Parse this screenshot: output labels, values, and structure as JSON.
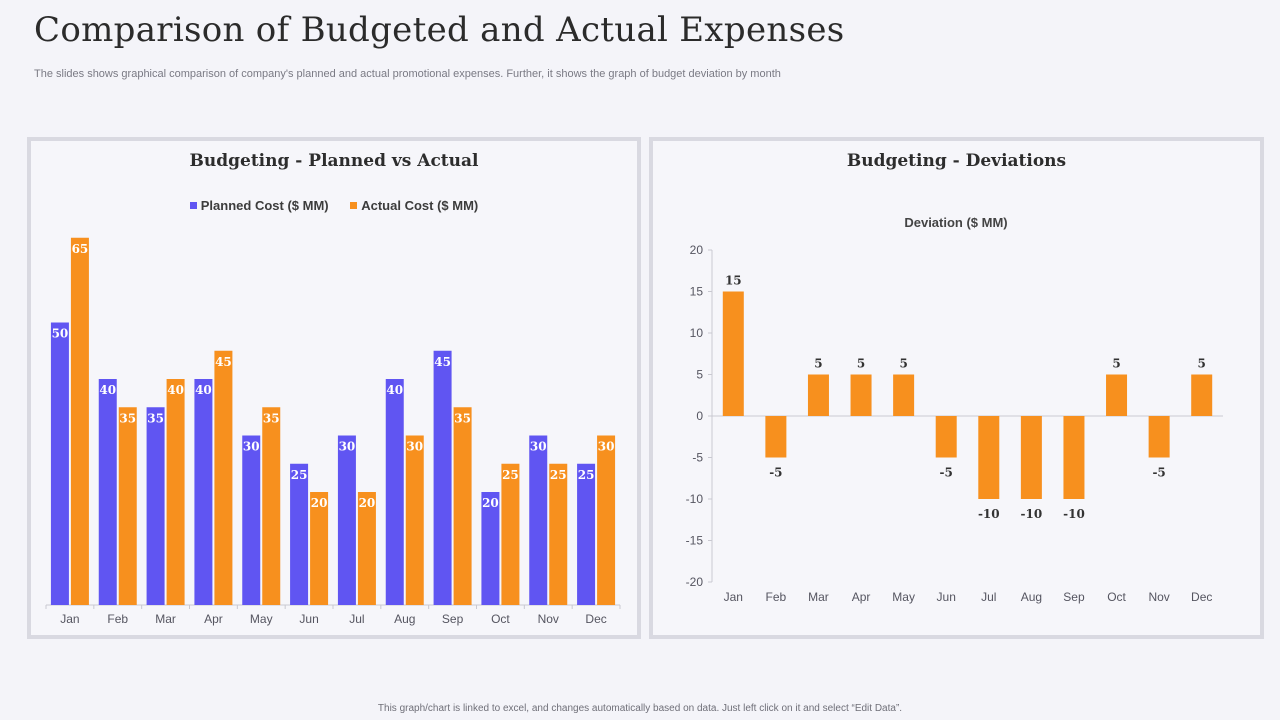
{
  "slide": {
    "title": "Comparison of Budgeted and Actual Expenses",
    "subtitle": "The slides shows graphical comparison of company's planned and actual promotional expenses. Further, it shows the graph of budget deviation by month",
    "footer": "This graph/chart is linked to excel, and changes automatically based on data. Just left click on it and select “Edit Data”."
  },
  "colors": {
    "planned": "#6055f2",
    "actual": "#f7901e"
  },
  "chart_data": [
    {
      "type": "bar",
      "title": "Budgeting - Planned vs Actual",
      "categories": [
        "Jan",
        "Feb",
        "Mar",
        "Apr",
        "May",
        "Jun",
        "Jul",
        "Aug",
        "Sep",
        "Oct",
        "Nov",
        "Dec"
      ],
      "series": [
        {
          "name": "Planned Cost ($ MM)",
          "values": [
            50,
            40,
            35,
            40,
            30,
            25,
            30,
            40,
            45,
            20,
            30,
            25
          ]
        },
        {
          "name": "Actual Cost ($ MM)",
          "values": [
            65,
            35,
            40,
            45,
            35,
            20,
            20,
            30,
            35,
            25,
            25,
            30
          ]
        }
      ],
      "ylim": [
        0,
        70
      ],
      "legend": "top-center",
      "grid": false
    },
    {
      "type": "bar",
      "title": "Budgeting - Deviations",
      "subtitle": "Deviation ($ MM)",
      "categories": [
        "Jan",
        "Feb",
        "Mar",
        "Apr",
        "May",
        "Jun",
        "Jul",
        "Aug",
        "Sep",
        "Oct",
        "Nov",
        "Dec"
      ],
      "values": [
        15,
        -5,
        5,
        5,
        5,
        -5,
        -10,
        -10,
        -10,
        5,
        -5,
        5
      ],
      "ylim": [
        -20,
        20
      ],
      "yticks": [
        20,
        15,
        10,
        5,
        0,
        -5,
        -10,
        -15,
        -20
      ],
      "grid": false
    }
  ]
}
